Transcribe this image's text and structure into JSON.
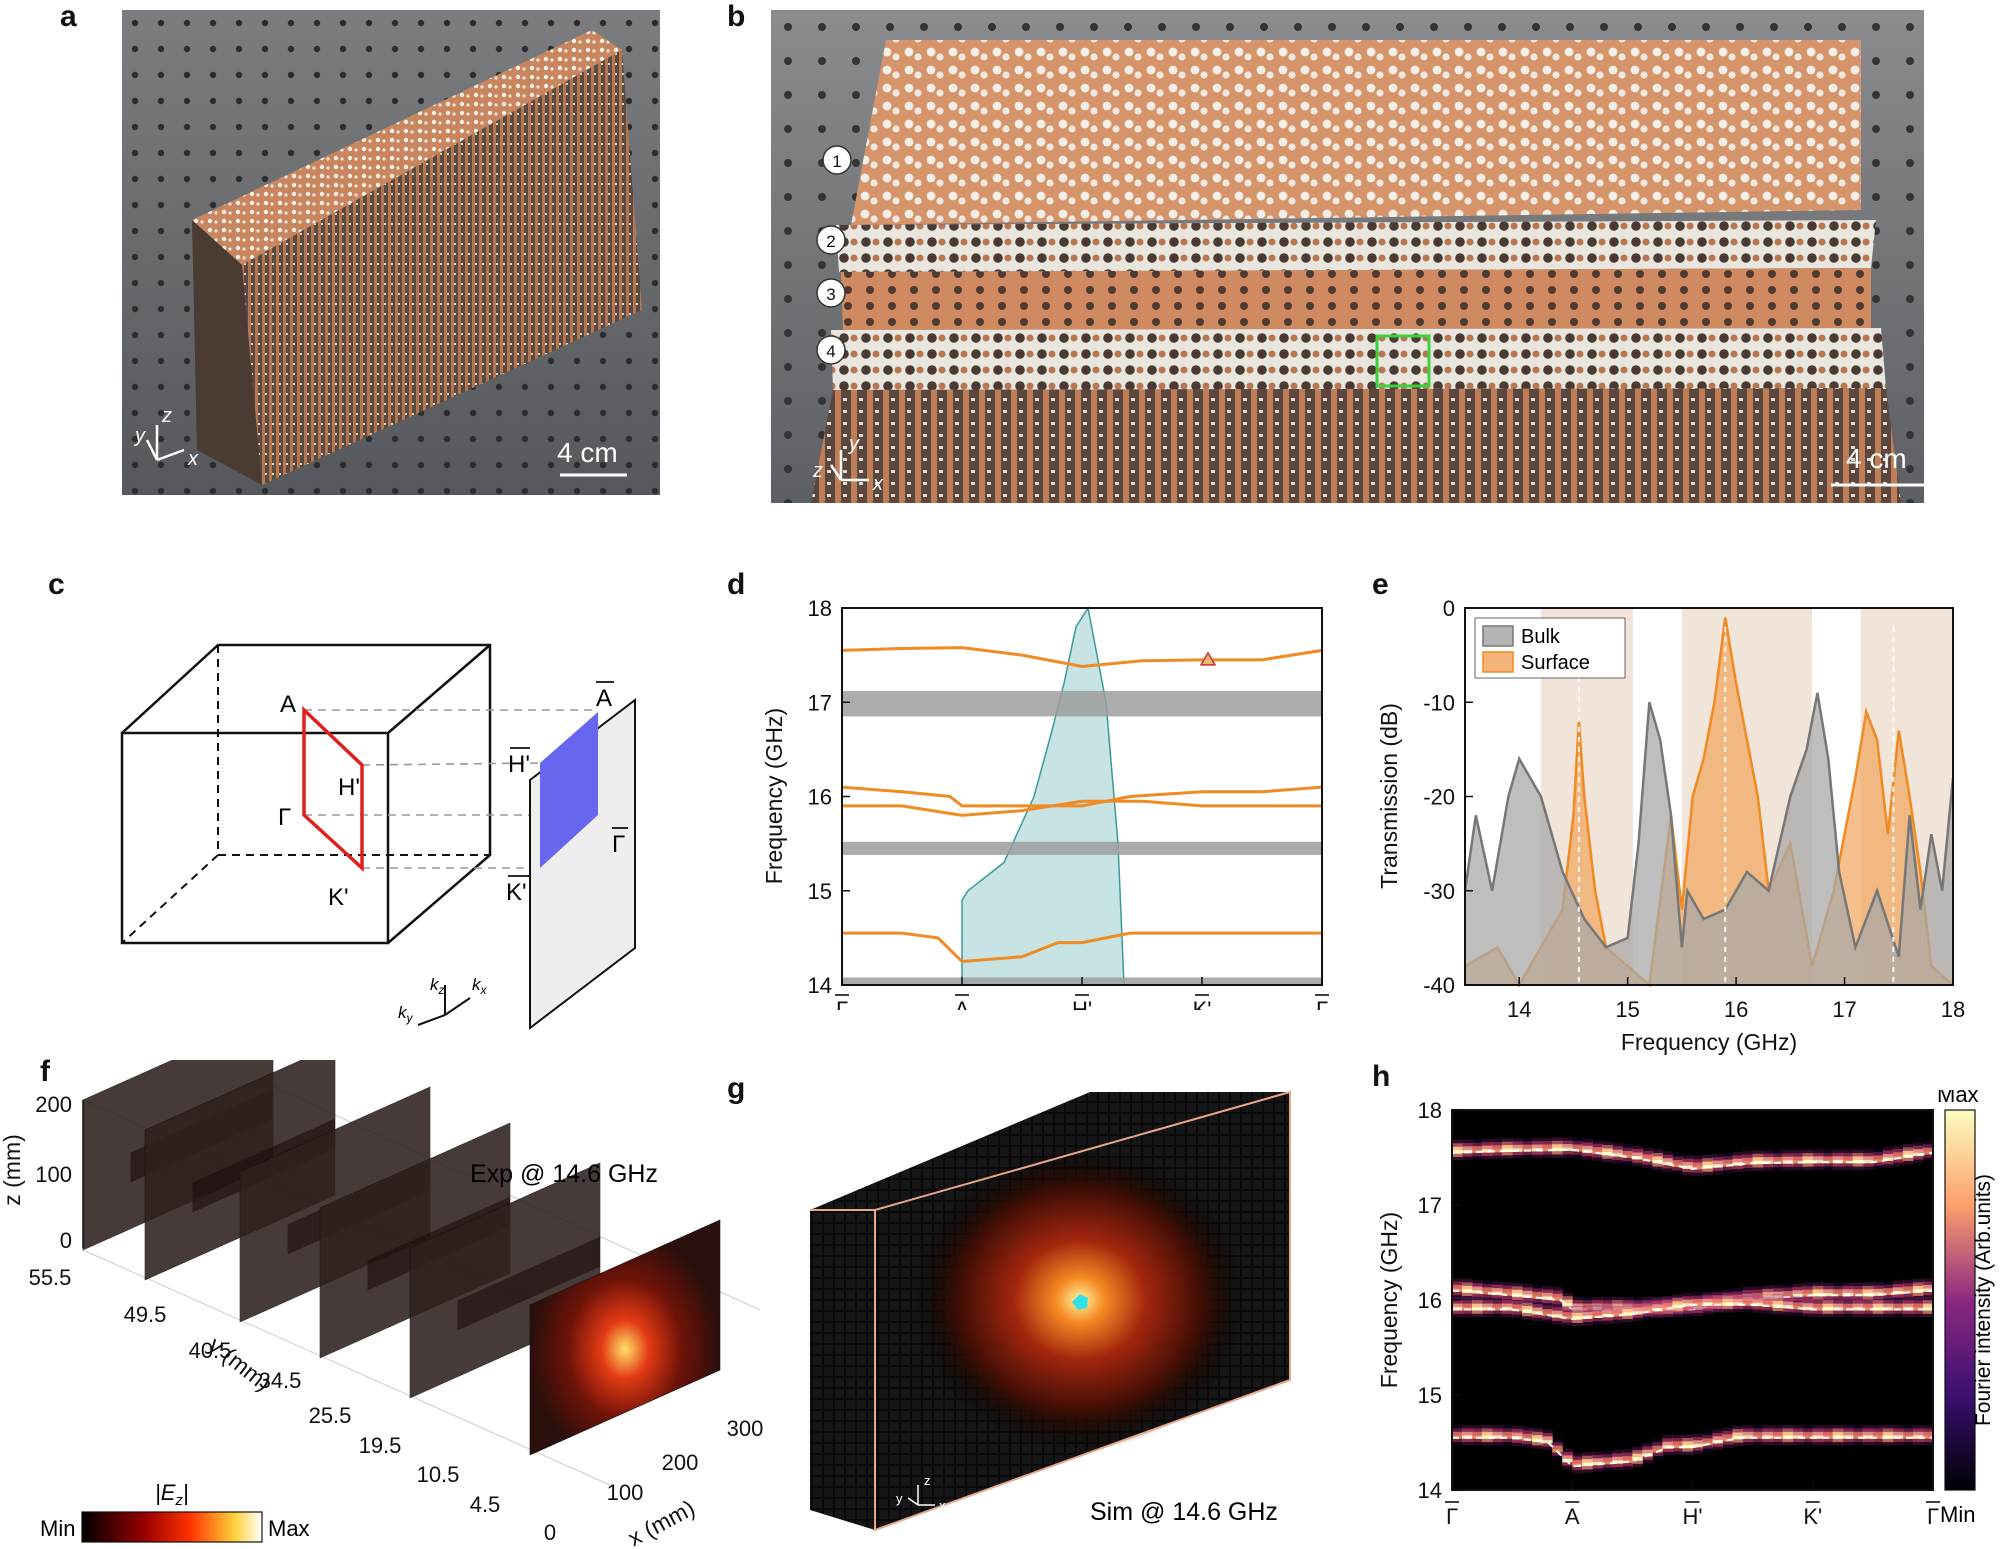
{
  "panels": {
    "a": {
      "label": "a",
      "scale_bar": "4 cm",
      "axes": {
        "x": "x",
        "y": "y",
        "z": "z"
      }
    },
    "b": {
      "label": "b",
      "scale_bar": "4 cm",
      "layers": [
        "1",
        "2",
        "3",
        "4"
      ],
      "axes": {
        "x": "x",
        "y": "y",
        "z": "z"
      }
    },
    "c": {
      "label": "c",
      "points": {
        "A": "A",
        "H": "H'",
        "Gamma": "Γ",
        "K": "K'",
        "A_bar": "A",
        "H_bar": "H'",
        "Gamma_bar": "Γ",
        "K_bar": "K'"
      },
      "k_axes": {
        "kz": "k",
        "kz_sub": "z",
        "kx": "k",
        "kx_sub": "x",
        "ky": "k",
        "ky_sub": "y"
      }
    },
    "d": {
      "label": "d"
    },
    "e": {
      "label": "e"
    },
    "f": {
      "label": "f",
      "annotation": "Exp @ 14.6 GHz",
      "z_label": "z (mm)",
      "z_ticks": [
        "200",
        "100",
        "0"
      ],
      "y_label": "y (mm)",
      "y_ticks": [
        "55.5",
        "49.5",
        "40.5",
        "34.5",
        "25.5",
        "19.5",
        "10.5",
        "4.5"
      ],
      "x_label": "x (mm)",
      "x_ticks": [
        "0",
        "100",
        "200",
        "300"
      ],
      "colorbar_title": "|E",
      "colorbar_sub": "z",
      "colorbar_min": "Min",
      "colorbar_max": "Max"
    },
    "g": {
      "label": "g",
      "annotation": "Sim @ 14.6 GHz",
      "axes": {
        "x": "x",
        "y": "y",
        "z": "z"
      }
    },
    "h": {
      "label": "h",
      "colorbar_max": "Max",
      "colorbar_min": "Min",
      "colorbar_title": "Fourier intensity (Arb.units)"
    }
  },
  "chart_data": [
    {
      "id": "d",
      "type": "line",
      "ylabel": "Frequency (GHz)",
      "ylim": [
        14,
        18
      ],
      "yticks": [
        "14",
        "15",
        "16",
        "17",
        "18"
      ],
      "xticks": [
        "Γ",
        "A",
        "H'",
        "K'",
        "Γ"
      ],
      "x": [
        0,
        1,
        2,
        3,
        4
      ],
      "surface_bands": [
        {
          "name": "surface-band-1",
          "x": [
            0,
            0.5,
            1,
            1.5,
            2,
            2.5,
            3,
            3.5,
            4
          ],
          "y": [
            17.55,
            17.57,
            17.58,
            17.5,
            17.38,
            17.44,
            17.45,
            17.45,
            17.55
          ]
        },
        {
          "name": "surface-band-2",
          "x": [
            0,
            0.5,
            0.9,
            1,
            1.5,
            2,
            2.4,
            3,
            3.5,
            4
          ],
          "y": [
            16.1,
            16.05,
            16.0,
            15.9,
            15.9,
            15.9,
            16.0,
            16.05,
            16.05,
            16.1
          ]
        },
        {
          "name": "surface-band-3",
          "x": [
            0,
            0.5,
            1,
            1.5,
            2,
            2.5,
            3,
            3.5,
            4
          ],
          "y": [
            15.9,
            15.9,
            15.8,
            15.85,
            15.95,
            15.95,
            15.9,
            15.9,
            15.9
          ]
        },
        {
          "name": "surface-band-4",
          "x": [
            0,
            0.5,
            0.8,
            1,
            1.5,
            1.8,
            2,
            2.4,
            3,
            3.5,
            4
          ],
          "y": [
            14.55,
            14.55,
            14.5,
            14.25,
            14.3,
            14.45,
            14.45,
            14.55,
            14.55,
            14.55,
            14.55
          ]
        }
      ],
      "bulk_bands": [
        {
          "name": "bulk-band-1",
          "y_low": 16.85,
          "y_high": 17.12
        },
        {
          "name": "bulk-band-2",
          "y_low": 15.38,
          "y_high": 15.52
        },
        {
          "name": "bulk-band-3",
          "y_low": 14.0,
          "y_high": 14.08
        }
      ],
      "light_cone": {
        "x": [
          1,
          1.05,
          1.35,
          1.6,
          1.75,
          1.85,
          1.95,
          2.05,
          2.2,
          2.3,
          2.35
        ],
        "y_lower": 14.0,
        "y_upper": [
          14.9,
          15.0,
          15.3,
          16.0,
          16.7,
          17.2,
          17.8,
          18.0,
          17.0,
          15.5,
          14.0
        ]
      },
      "marker": {
        "x": 3.05,
        "y": 17.45,
        "shape": "triangle"
      }
    },
    {
      "id": "e",
      "type": "area",
      "xlabel": "Frequency (GHz)",
      "ylabel": "Transmission (dB)",
      "xlim": [
        13.5,
        18
      ],
      "ylim": [
        -40,
        0
      ],
      "xticks": [
        "14",
        "15",
        "16",
        "17",
        "18"
      ],
      "yticks": [
        "0",
        "-10",
        "-20",
        "-30",
        "-40"
      ],
      "legend": [
        "Bulk",
        "Surface"
      ],
      "shaded_bands": [
        [
          14.2,
          15.05
        ],
        [
          15.5,
          16.7
        ],
        [
          17.15,
          18.0
        ]
      ],
      "dashed_lines": [
        14.55,
        15.9,
        17.45
      ],
      "series": [
        {
          "name": "Bulk",
          "x": [
            13.5,
            13.6,
            13.75,
            13.9,
            14.0,
            14.2,
            14.4,
            14.6,
            14.8,
            15.0,
            15.1,
            15.2,
            15.3,
            15.4,
            15.5,
            15.55,
            15.7,
            15.9,
            16.1,
            16.3,
            16.5,
            16.65,
            16.75,
            16.85,
            16.95,
            17.1,
            17.3,
            17.5,
            17.6,
            17.7,
            17.8,
            17.9,
            18.0
          ],
          "y": [
            -30,
            -22,
            -30,
            -20,
            -16,
            -20,
            -28,
            -33,
            -36,
            -35,
            -25,
            -10,
            -14,
            -22,
            -36,
            -30,
            -33,
            -32,
            -28,
            -30,
            -20,
            -15,
            -9,
            -16,
            -28,
            -36,
            -30,
            -37,
            -22,
            -32,
            -24,
            -30,
            -18
          ]
        },
        {
          "name": "Surface",
          "x": [
            13.5,
            13.8,
            14.0,
            14.2,
            14.4,
            14.5,
            14.55,
            14.6,
            14.7,
            14.8,
            15.0,
            15.2,
            15.4,
            15.5,
            15.6,
            15.7,
            15.8,
            15.9,
            16.0,
            16.1,
            16.2,
            16.3,
            16.5,
            16.7,
            16.9,
            17.1,
            17.2,
            17.3,
            17.4,
            17.5,
            17.6,
            17.7,
            17.8,
            18.0
          ],
          "y": [
            -38,
            -36,
            -40,
            -36,
            -32,
            -22,
            -12,
            -20,
            -30,
            -36,
            -38,
            -40,
            -22,
            -32,
            -20,
            -16,
            -10,
            -1,
            -8,
            -14,
            -20,
            -30,
            -25,
            -38,
            -30,
            -18,
            -11,
            -14,
            -24,
            -13,
            -20,
            -28,
            -38,
            -40
          ]
        }
      ]
    },
    {
      "id": "h",
      "type": "heatmap",
      "ylabel": "Frequency (GHz)",
      "ylim": [
        14,
        18
      ],
      "yticks": [
        "14",
        "15",
        "16",
        "17",
        "18"
      ],
      "xticks": [
        "Γ",
        "A",
        "H'",
        "K'",
        "Γ"
      ],
      "bright_bands": [
        {
          "center": 17.5,
          "spread": 0.08
        },
        {
          "center": 16.05,
          "spread": 0.12
        },
        {
          "center": 15.9,
          "spread": 0.1
        },
        {
          "center": 14.5,
          "spread": 0.1
        }
      ],
      "dashed_overlays": "surface bands from panel d"
    }
  ]
}
